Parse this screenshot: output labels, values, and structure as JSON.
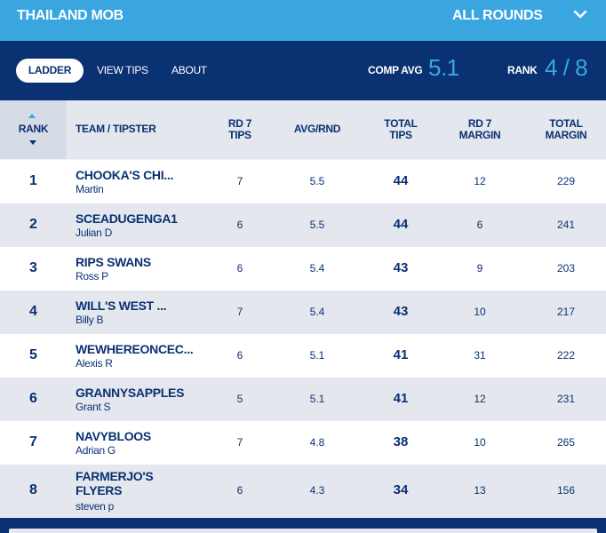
{
  "header": {
    "competition": "THAILAND MOB",
    "rounds_selected": "ALL ROUNDS",
    "chevron_icon": "chevron-down-icon"
  },
  "nav": {
    "tabs": [
      {
        "label": "LADDER",
        "active": true
      },
      {
        "label": "VIEW TIPS",
        "active": false
      },
      {
        "label": "ABOUT",
        "active": false
      }
    ],
    "comp_avg_label": "COMP AVG",
    "comp_avg_value": "5.1",
    "rank_label": "RANK",
    "rank_value": "4 / 8"
  },
  "table": {
    "columns": {
      "rank": "RANK",
      "team": "TEAM / TIPSTER",
      "rd_tips_1": "RD 7",
      "rd_tips_2": "TIPS",
      "avg": "AVG/RND",
      "total_tips_1": "TOTAL",
      "total_tips_2": "TIPS",
      "rd_margin_1": "RD 7",
      "rd_margin_2": "MARGIN",
      "total_margin_1": "TOTAL",
      "total_margin_2": "MARGIN"
    },
    "rows": [
      {
        "rank": "1",
        "team": "CHOOKA'S CHI...",
        "tipster": "Martin",
        "rd_tips": "7",
        "avg": "5.5",
        "total_tips": "44",
        "rd_margin": "12",
        "total_margin": "229"
      },
      {
        "rank": "2",
        "team": "SCEADUGENGA1",
        "tipster": "Julian D",
        "rd_tips": "6",
        "avg": "5.5",
        "total_tips": "44",
        "rd_margin": "6",
        "total_margin": "241"
      },
      {
        "rank": "3",
        "team": "RIPS SWANS",
        "tipster": "Ross P",
        "rd_tips": "6",
        "avg": "5.4",
        "total_tips": "43",
        "rd_margin": "9",
        "total_margin": "203"
      },
      {
        "rank": "4",
        "team": "WILL'S WEST ...",
        "tipster": "Billy B",
        "rd_tips": "7",
        "avg": "5.4",
        "total_tips": "43",
        "rd_margin": "10",
        "total_margin": "217"
      },
      {
        "rank": "5",
        "team": "WEWHEREONCEC...",
        "tipster": "Alexis R",
        "rd_tips": "6",
        "avg": "5.1",
        "total_tips": "41",
        "rd_margin": "31",
        "total_margin": "222"
      },
      {
        "rank": "6",
        "team": "GRANNYSAPPLES",
        "tipster": "Grant S",
        "rd_tips": "5",
        "avg": "5.1",
        "total_tips": "41",
        "rd_margin": "12",
        "total_margin": "231"
      },
      {
        "rank": "7",
        "team": "NAVYBLOOS",
        "tipster": "Adrian G",
        "rd_tips": "7",
        "avg": "4.8",
        "total_tips": "38",
        "rd_margin": "10",
        "total_margin": "265"
      },
      {
        "rank": "8",
        "team": "FARMERJO'S FLYERS",
        "tipster": "steven p",
        "rd_tips": "6",
        "avg": "4.3",
        "total_tips": "34",
        "rd_margin": "13",
        "total_margin": "156"
      }
    ]
  },
  "colors": {
    "accent": "#3aa6e0",
    "navy": "#0a3172",
    "row_alt": "#e4e8ee"
  }
}
